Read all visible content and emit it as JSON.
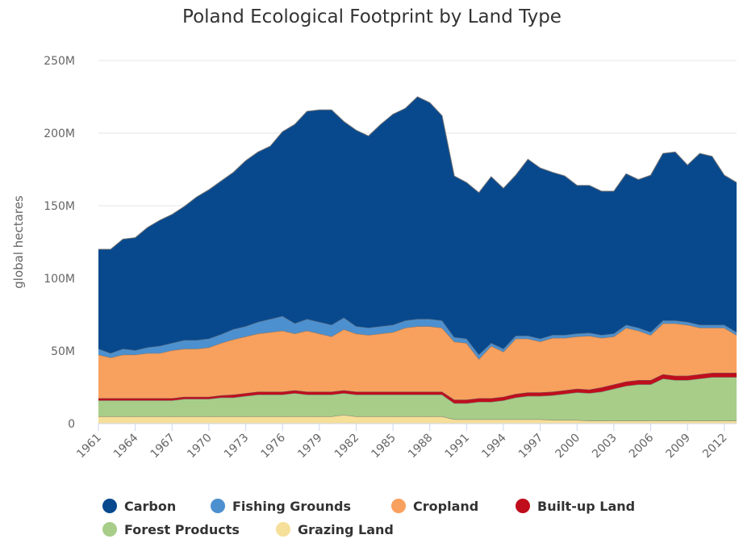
{
  "chart_data": {
    "type": "area",
    "stacked": true,
    "title": "Poland Ecological Footprint by Land Type",
    "ylabel": "global hectares",
    "xlabel": "",
    "ylim": [
      0,
      250000000
    ],
    "y_ticks": [
      {
        "value": 0,
        "label": "0"
      },
      {
        "value": 50000000,
        "label": "50M"
      },
      {
        "value": 100000000,
        "label": "100M"
      },
      {
        "value": 150000000,
        "label": "150M"
      },
      {
        "value": 200000000,
        "label": "200M"
      },
      {
        "value": 250000000,
        "label": "250M"
      }
    ],
    "x_tick_labels": [
      "1961",
      "1964",
      "1967",
      "1970",
      "1973",
      "1976",
      "1979",
      "1982",
      "1985",
      "1988",
      "1991",
      "1994",
      "1997",
      "2000",
      "2003",
      "2006",
      "2009",
      "2012"
    ],
    "grid": true,
    "legend_position": "bottom",
    "x": [
      1961,
      1962,
      1963,
      1964,
      1965,
      1966,
      1967,
      1968,
      1969,
      1970,
      1971,
      1972,
      1973,
      1974,
      1975,
      1976,
      1977,
      1978,
      1979,
      1980,
      1981,
      1982,
      1983,
      1984,
      1985,
      1986,
      1987,
      1988,
      1989,
      1990,
      1991,
      1992,
      1993,
      1994,
      1995,
      1996,
      1997,
      1998,
      1999,
      2000,
      2001,
      2002,
      2003,
      2004,
      2005,
      2006,
      2007,
      2008,
      2009,
      2010,
      2011,
      2012,
      2013
    ],
    "series": [
      {
        "name": "Grazing Land",
        "color": "#f6df98",
        "values": [
          5000000,
          5000000,
          5000000,
          5000000,
          5000000,
          5000000,
          5000000,
          5000000,
          5000000,
          5000000,
          5000000,
          5000000,
          5000000,
          5000000,
          5000000,
          5000000,
          5000000,
          5000000,
          5000000,
          5000000,
          6000000,
          5000000,
          5000000,
          5000000,
          5000000,
          5000000,
          5000000,
          5000000,
          5000000,
          3000000,
          3000000,
          3000000,
          3000000,
          3000000,
          3000000,
          3000000,
          3000000,
          2500000,
          2500000,
          2500000,
          2000000,
          2000000,
          2000000,
          2000000,
          2000000,
          2000000,
          2000000,
          2000000,
          2000000,
          2000000,
          2000000,
          2000000,
          2000000
        ]
      },
      {
        "name": "Forest Products",
        "color": "#a7cd89",
        "values": [
          11000000,
          11000000,
          11000000,
          11000000,
          11000000,
          11000000,
          11000000,
          12000000,
          12000000,
          12000000,
          13000000,
          13000000,
          14000000,
          15000000,
          15000000,
          15000000,
          16000000,
          15000000,
          15000000,
          15000000,
          15000000,
          15000000,
          15000000,
          15000000,
          15000000,
          15000000,
          15000000,
          15000000,
          15000000,
          11000000,
          11000000,
          12000000,
          12000000,
          13000000,
          15000000,
          16000000,
          16000000,
          17000000,
          18000000,
          19000000,
          19000000,
          20000000,
          22000000,
          24000000,
          25000000,
          25000000,
          29000000,
          28000000,
          28000000,
          29000000,
          30000000,
          30000000,
          30000000
        ]
      },
      {
        "name": "Built-up Land",
        "color": "#c00d1c",
        "values": [
          1500000,
          1500000,
          1500000,
          1500000,
          1500000,
          1500000,
          1500000,
          1500000,
          1500000,
          1500000,
          1500000,
          2000000,
          2000000,
          2000000,
          2000000,
          2000000,
          2000000,
          2000000,
          2000000,
          2000000,
          2000000,
          2000000,
          2000000,
          2000000,
          2000000,
          2000000,
          2000000,
          2000000,
          2000000,
          2500000,
          2500000,
          2500000,
          2500000,
          2500000,
          2500000,
          2500000,
          2500000,
          2500000,
          2500000,
          2500000,
          2500000,
          3000000,
          3000000,
          3000000,
          3000000,
          3000000,
          3000000,
          3000000,
          3000000,
          3000000,
          3000000,
          3000000,
          3000000
        ]
      },
      {
        "name": "Cropland",
        "color": "#f8a05d",
        "values": [
          30000000,
          28000000,
          30000000,
          30000000,
          31000000,
          31000000,
          33000000,
          33000000,
          33000000,
          34000000,
          36000000,
          38000000,
          39000000,
          40000000,
          41000000,
          42000000,
          39000000,
          42000000,
          40000000,
          38000000,
          42000000,
          40000000,
          39000000,
          40000000,
          41000000,
          44000000,
          45000000,
          45000000,
          44000000,
          40000000,
          39000000,
          27000000,
          36000000,
          31000000,
          38000000,
          37000000,
          35000000,
          37000000,
          36000000,
          36000000,
          37000000,
          34000000,
          33000000,
          37000000,
          34000000,
          31000000,
          35000000,
          36000000,
          35000000,
          32000000,
          31000000,
          31000000,
          26000000
        ]
      },
      {
        "name": "Fishing Grounds",
        "color": "#4d90cf",
        "values": [
          4000000,
          3000000,
          4000000,
          3000000,
          4000000,
          5000000,
          5000000,
          6000000,
          6000000,
          6000000,
          6000000,
          7000000,
          7000000,
          8000000,
          9000000,
          10000000,
          7000000,
          8000000,
          8000000,
          8000000,
          8000000,
          5000000,
          5000000,
          5000000,
          5000000,
          5000000,
          5000000,
          5000000,
          5000000,
          3000000,
          3000000,
          3000000,
          2000000,
          2000000,
          2000000,
          2000000,
          2000000,
          2000000,
          2000000,
          2000000,
          2000000,
          2000000,
          2000000,
          2000000,
          2000000,
          2000000,
          2000000,
          2000000,
          2000000,
          2000000,
          2000000,
          2000000,
          2000000
        ]
      },
      {
        "name": "Carbon",
        "color": "#08498e",
        "values": [
          68500000,
          71500000,
          75500000,
          77500000,
          82500000,
          86500000,
          88500000,
          92000000,
          98500000,
          102500000,
          105500000,
          108000000,
          114000000,
          117000000,
          119000000,
          127000000,
          137000000,
          143000000,
          146000000,
          148000000,
          135000000,
          135000000,
          132000000,
          139000000,
          145000000,
          146000000,
          153000000,
          149000000,
          141000000,
          111000000,
          107500000,
          111500000,
          114500000,
          110500000,
          110500000,
          121500000,
          117500000,
          112000000,
          109500000,
          102000000,
          101500000,
          99000000,
          98000000,
          104000000,
          102000000,
          108000000,
          115000000,
          116000000,
          108000000,
          118000000,
          116000000,
          103000000,
          103000000
        ]
      }
    ],
    "legend": [
      {
        "name": "Carbon",
        "color": "#08498e"
      },
      {
        "name": "Fishing Grounds",
        "color": "#4d90cf"
      },
      {
        "name": "Cropland",
        "color": "#f8a05d"
      },
      {
        "name": "Built-up Land",
        "color": "#c00d1c"
      },
      {
        "name": "Forest Products",
        "color": "#a7cd89"
      },
      {
        "name": "Grazing Land",
        "color": "#f6df98"
      }
    ]
  }
}
